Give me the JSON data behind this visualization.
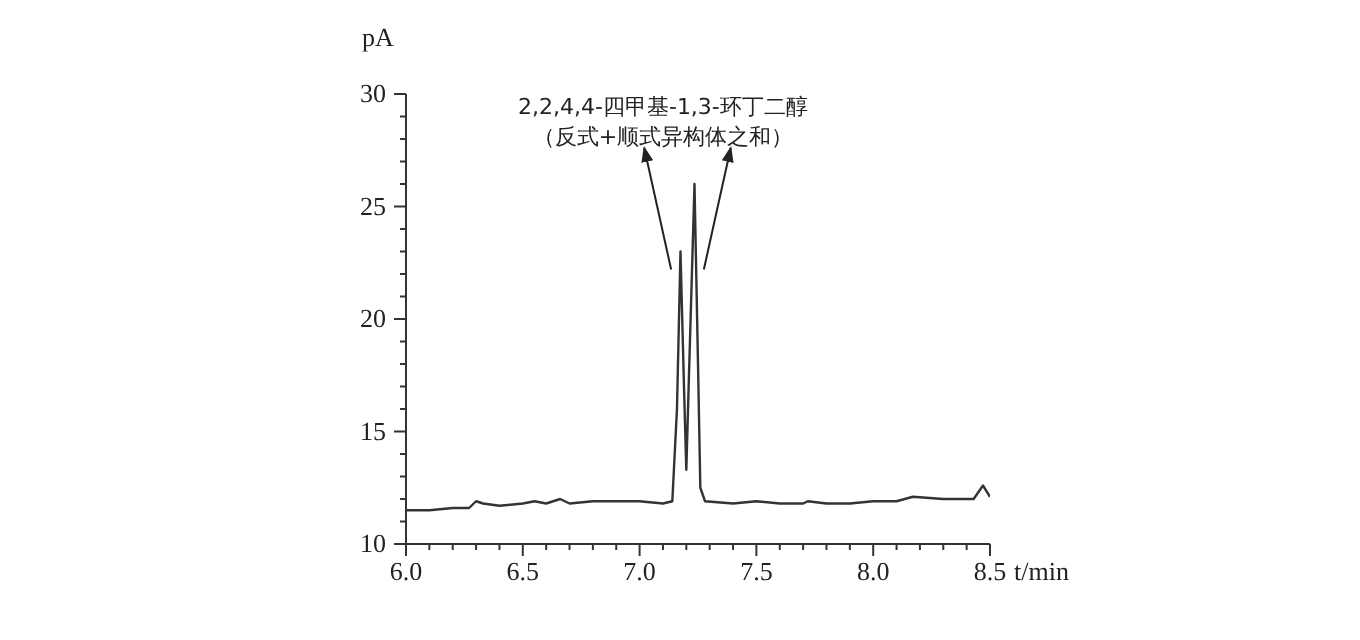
{
  "chart_data": {
    "type": "line",
    "xlabel": "t/min",
    "ylabel": "pA",
    "annotations": [
      "2,2,4,4-四甲基-1,3-环丁二醇",
      "（反式+顺式异构体之和）"
    ],
    "x": [
      6.0,
      6.1,
      6.2,
      6.27,
      6.3,
      6.33,
      6.4,
      6.5,
      6.55,
      6.6,
      6.66,
      6.7,
      6.8,
      6.9,
      7.0,
      7.1,
      7.14,
      7.16,
      7.175,
      7.19,
      7.2,
      7.21,
      7.235,
      7.25,
      7.26,
      7.28,
      7.4,
      7.5,
      7.6,
      7.7,
      7.72,
      7.8,
      7.9,
      8.0,
      8.1,
      8.17,
      8.3,
      8.4,
      8.43,
      8.47,
      8.5
    ],
    "series": [
      {
        "color": "#333333",
        "values": [
          11.5,
          11.5,
          11.6,
          11.6,
          11.9,
          11.8,
          11.7,
          11.8,
          11.9,
          11.8,
          12.0,
          11.8,
          11.9,
          11.9,
          11.9,
          11.8,
          11.9,
          16,
          23.0,
          17,
          13.3,
          17,
          26.0,
          18,
          12.5,
          11.9,
          11.8,
          11.9,
          11.8,
          11.8,
          11.9,
          11.8,
          11.8,
          11.9,
          11.9,
          12.1,
          12.0,
          12.0,
          12.0,
          12.6,
          12.1
        ]
      }
    ],
    "xlim": [
      6.0,
      8.5
    ],
    "ylim": [
      10,
      30
    ],
    "xticks": [
      {
        "value": 6.0,
        "label": "6.0"
      },
      {
        "value": 6.1,
        "label": null
      },
      {
        "value": 6.2,
        "label": null
      },
      {
        "value": 6.3,
        "label": null
      },
      {
        "value": 6.4,
        "label": null
      },
      {
        "value": 6.5,
        "label": "6.5"
      },
      {
        "value": 6.6,
        "label": null
      },
      {
        "value": 6.7,
        "label": null
      },
      {
        "value": 6.8,
        "label": null
      },
      {
        "value": 6.9,
        "label": null
      },
      {
        "value": 7.0,
        "label": "7.0"
      },
      {
        "value": 7.1,
        "label": null
      },
      {
        "value": 7.2,
        "label": null
      },
      {
        "value": 7.3,
        "label": null
      },
      {
        "value": 7.4,
        "label": null
      },
      {
        "value": 7.5,
        "label": "7.5"
      },
      {
        "value": 7.6,
        "label": null
      },
      {
        "value": 7.7,
        "label": null
      },
      {
        "value": 7.8,
        "label": null
      },
      {
        "value": 7.9,
        "label": null
      },
      {
        "value": 8.0,
        "label": "8.0"
      },
      {
        "value": 8.1,
        "label": null
      },
      {
        "value": 8.2,
        "label": null
      },
      {
        "value": 8.3,
        "label": null
      },
      {
        "value": 8.4,
        "label": null
      },
      {
        "value": 8.5,
        "label": "8.5"
      }
    ],
    "yticks": [
      10,
      {
        "value": 11,
        "label": null
      },
      {
        "value": 12,
        "label": null
      },
      {
        "value": 13,
        "label": null
      },
      {
        "value": 14,
        "label": null
      },
      15,
      {
        "value": 16,
        "label": null
      },
      {
        "value": 17,
        "label": null
      },
      {
        "value": 18,
        "label": null
      },
      {
        "value": 19,
        "label": null
      },
      20,
      {
        "value": 21,
        "label": null
      },
      {
        "value": 22,
        "label": null
      },
      {
        "value": 23,
        "label": null
      },
      {
        "value": 24,
        "label": null
      },
      25,
      {
        "value": 26,
        "label": null
      },
      {
        "value": 27,
        "label": null
      },
      {
        "value": 28,
        "label": null
      },
      {
        "value": 29,
        "label": null
      },
      30
    ],
    "grid": false,
    "legend": false,
    "marker": "none",
    "line_style": "solid"
  }
}
